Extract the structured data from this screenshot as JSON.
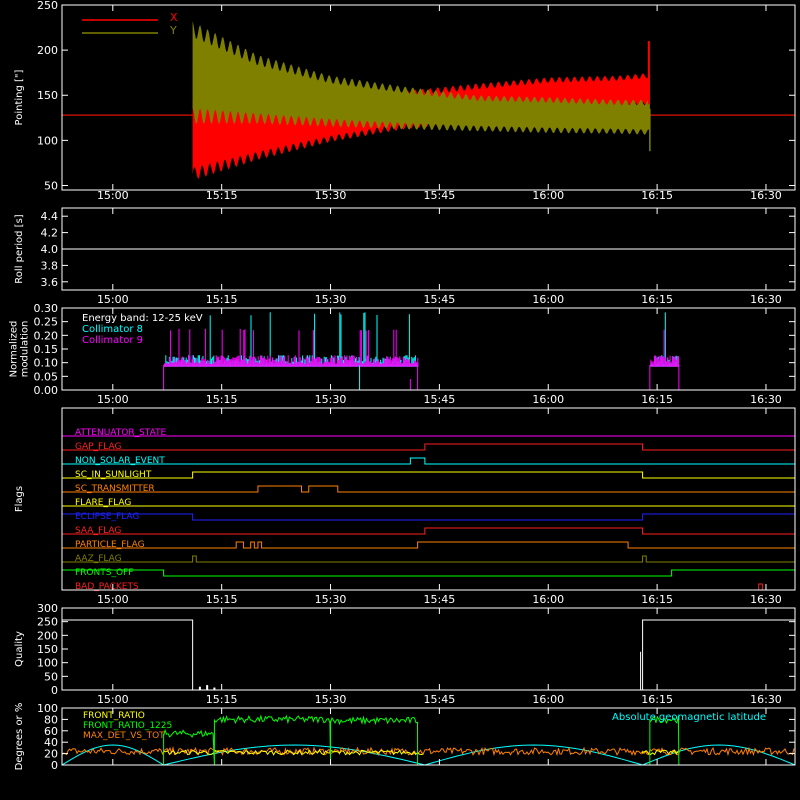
{
  "colors": {
    "background": "#000000",
    "axes": "#ffffff",
    "x_pointing": "#ff0000",
    "y_pointing": "#808000",
    "collimator_8": "#00ffff",
    "collimator_9": "#ff00ff",
    "front_ratio": "#ffff00",
    "front_ratio_1225": "#00ff00",
    "max_det_vs_tot": "#ff8000",
    "geomagnetic": "#00ffff"
  },
  "chart_data": [
    {
      "id": "pointing",
      "type": "line",
      "ylabel": "Pointing [\"]",
      "xlabel": "",
      "x_unit": "time",
      "xlim": [
        "14:53",
        "16:34"
      ],
      "ylim": [
        45,
        250
      ],
      "x_ticks": [
        "15:00",
        "15:15",
        "15:30",
        "15:45",
        "16:00",
        "16:15",
        "16:30"
      ],
      "y_ticks": [
        50,
        100,
        150,
        200,
        250
      ],
      "legend": [
        "X",
        "Y"
      ],
      "legend_placement": "top-left",
      "series": [
        {
          "name": "X",
          "color": "#ff0000",
          "baseline": 128,
          "points_time": [
            "15:11",
            "15:20",
            "15:30",
            "15:40",
            "15:50",
            "16:00",
            "16:10",
            "16:14"
          ],
          "max": [
            150,
            140,
            145,
            155,
            163,
            170,
            172,
            175
          ],
          "min": [
            55,
            78,
            98,
            112,
            120,
            130,
            135,
            137
          ]
        },
        {
          "name": "Y",
          "color": "#808000",
          "baseline": 128,
          "points_time": [
            "15:11",
            "15:20",
            "15:30",
            "15:40",
            "15:50",
            "16:00",
            "16:10",
            "16:14"
          ],
          "max": [
            232,
            195,
            172,
            160,
            150,
            148,
            145,
            145
          ],
          "min": [
            118,
            118,
            115,
            112,
            110,
            108,
            107,
            106
          ]
        }
      ]
    },
    {
      "id": "roll_period",
      "type": "line",
      "ylabel": "Roll period [s]",
      "xlabel": "",
      "xlim": [
        "14:53",
        "16:34"
      ],
      "ylim": [
        3.5,
        4.5
      ],
      "x_ticks": [
        "15:00",
        "15:15",
        "15:30",
        "15:45",
        "16:00",
        "16:15",
        "16:30"
      ],
      "y_ticks": [
        3.6,
        3.8,
        4.0,
        4.2,
        4.4
      ],
      "series": [
        {
          "name": "",
          "value": 4.0,
          "from": "14:53",
          "to": "16:34"
        }
      ]
    },
    {
      "id": "modulation",
      "type": "line",
      "ylabel": "Normalized modulation",
      "xlabel": "",
      "xlim": [
        "14:53",
        "16:34"
      ],
      "ylim": [
        0,
        0.3
      ],
      "x_ticks": [
        "15:00",
        "15:15",
        "15:30",
        "15:45",
        "16:00",
        "16:15",
        "16:30"
      ],
      "y_ticks": [
        "0.00",
        "0.05",
        "0.10",
        "0.15",
        "0.20",
        "0.25",
        "0.30"
      ],
      "legend": [
        "Energy band: 12-25 keV",
        "Collimator 8",
        "Collimator 9"
      ],
      "legend_placement": "top-left",
      "segments": [
        {
          "from": "15:07",
          "to": "15:42",
          "level": 0.09
        },
        {
          "from": "16:14",
          "to": "16:18",
          "level": 0.09
        }
      ],
      "series": [
        {
          "name": "Collimator 8",
          "color": "#00ffff",
          "peak": 0.28
        },
        {
          "name": "Collimator 9",
          "color": "#ff00ff",
          "peak": 0.22
        }
      ]
    },
    {
      "id": "flags",
      "type": "step",
      "ylabel": "Flags",
      "xlabel": "",
      "xlim": [
        "14:53",
        "16:34"
      ],
      "x_ticks": [
        "15:00",
        "15:15",
        "15:30",
        "15:45",
        "16:00",
        "16:15",
        "16:30"
      ],
      "flags": [
        {
          "name": "ATTENUATOR_STATE",
          "color": "#ff00ff",
          "steps": []
        },
        {
          "name": "GAP_FLAG",
          "color": "#ff2020",
          "steps": [
            [
              "15:43",
              "16:13"
            ]
          ]
        },
        {
          "name": "NON_SOLAR_EVENT",
          "color": "#00ffff",
          "steps": [
            [
              "15:41",
              "15:43"
            ]
          ]
        },
        {
          "name": "SC_IN_SUNLIGHT",
          "color": "#ffff00",
          "steps": [
            [
              "15:11",
              "16:13"
            ]
          ]
        },
        {
          "name": "SC_TRANSMITTER",
          "color": "#ff8000",
          "steps": [
            [
              "15:20",
              "15:26"
            ],
            [
              "15:27",
              "15:31"
            ]
          ]
        },
        {
          "name": "FLARE_FLAG",
          "color": "#ffff00",
          "steps": []
        },
        {
          "name": "ECLIPSE_FLAG",
          "color": "#2020ff",
          "steps": [
            [
              "14:53",
              "15:11"
            ],
            [
              "16:13",
              "16:34"
            ]
          ]
        },
        {
          "name": "SAA_FLAG",
          "color": "#ff2020",
          "steps": [
            [
              "15:43",
              "16:13"
            ]
          ]
        },
        {
          "name": "PARTICLE_FLAG",
          "color": "#ff8000",
          "steps": [
            [
              "15:17",
              "15:18"
            ],
            [
              "15:19",
              "15:19.5"
            ],
            [
              "15:20",
              "15:20.5"
            ],
            [
              "15:42",
              "16:11"
            ]
          ]
        },
        {
          "name": "AAZ_FLAG",
          "color": "#808000",
          "steps": [
            [
              "15:11",
              "15:11.3"
            ],
            [
              "16:13",
              "16:13.3"
            ]
          ]
        },
        {
          "name": "FRONTS_OFF",
          "color": "#00ff00",
          "steps": [
            [
              "14:53",
              "15:07"
            ],
            [
              "16:17",
              "16:34"
            ]
          ]
        },
        {
          "name": "BAD_PACKETS",
          "color": "#ff2020",
          "steps": [
            [
              "16:29",
              "16:29.3"
            ]
          ]
        }
      ]
    },
    {
      "id": "quality",
      "type": "line",
      "ylabel": "Quality",
      "xlabel": "",
      "xlim": [
        "14:53",
        "16:34"
      ],
      "ylim": [
        0,
        300
      ],
      "x_ticks": [
        "15:00",
        "15:15",
        "15:30",
        "15:45",
        "16:00",
        "16:15",
        "16:30"
      ],
      "y_ticks": [
        0,
        50,
        100,
        150,
        200,
        250,
        300
      ],
      "series": [
        {
          "name": "",
          "segments": [
            {
              "from": "14:53",
              "to": "15:11",
              "value": 256
            },
            {
              "from": "15:11",
              "to": "16:13",
              "value": 0
            },
            {
              "from": "16:13",
              "to": "16:34",
              "value": 256
            }
          ]
        }
      ]
    },
    {
      "id": "ratios",
      "type": "line",
      "ylabel": "Degrees or %",
      "xlabel": "",
      "xlim": [
        "14:53",
        "16:34"
      ],
      "ylim": [
        0,
        100
      ],
      "x_ticks": [
        "15:00",
        "15:15",
        "15:30",
        "15:45",
        "16:00",
        "16:15",
        "16:30"
      ],
      "y_ticks": [
        0,
        20,
        40,
        60,
        80,
        100
      ],
      "legend": [
        "FRONT_RATIO",
        "FRONT_RATIO_1225",
        "MAX_DET_VS_TOT"
      ],
      "legend_placement": "top-left",
      "annotation": "Absolute geomagnetic latitude",
      "series": [
        {
          "name": "FRONT_RATIO_1225",
          "color": "#00ff00",
          "levels": [
            {
              "from": "15:07",
              "to": "15:14",
              "value": 55
            },
            {
              "from": "15:14",
              "to": "15:30",
              "value": 80
            },
            {
              "from": "15:30",
              "to": "15:42",
              "value": 78
            },
            {
              "from": "16:14",
              "to": "16:18",
              "value": 80
            }
          ]
        },
        {
          "name": "FRONT_RATIO",
          "color": "#ffff00",
          "value": 22
        },
        {
          "name": "MAX_DET_VS_TOT",
          "color": "#ff8000",
          "value": 22
        },
        {
          "name": "Absolute geomagnetic latitude",
          "color": "#00ffff",
          "peaks": 35
        }
      ]
    }
  ]
}
